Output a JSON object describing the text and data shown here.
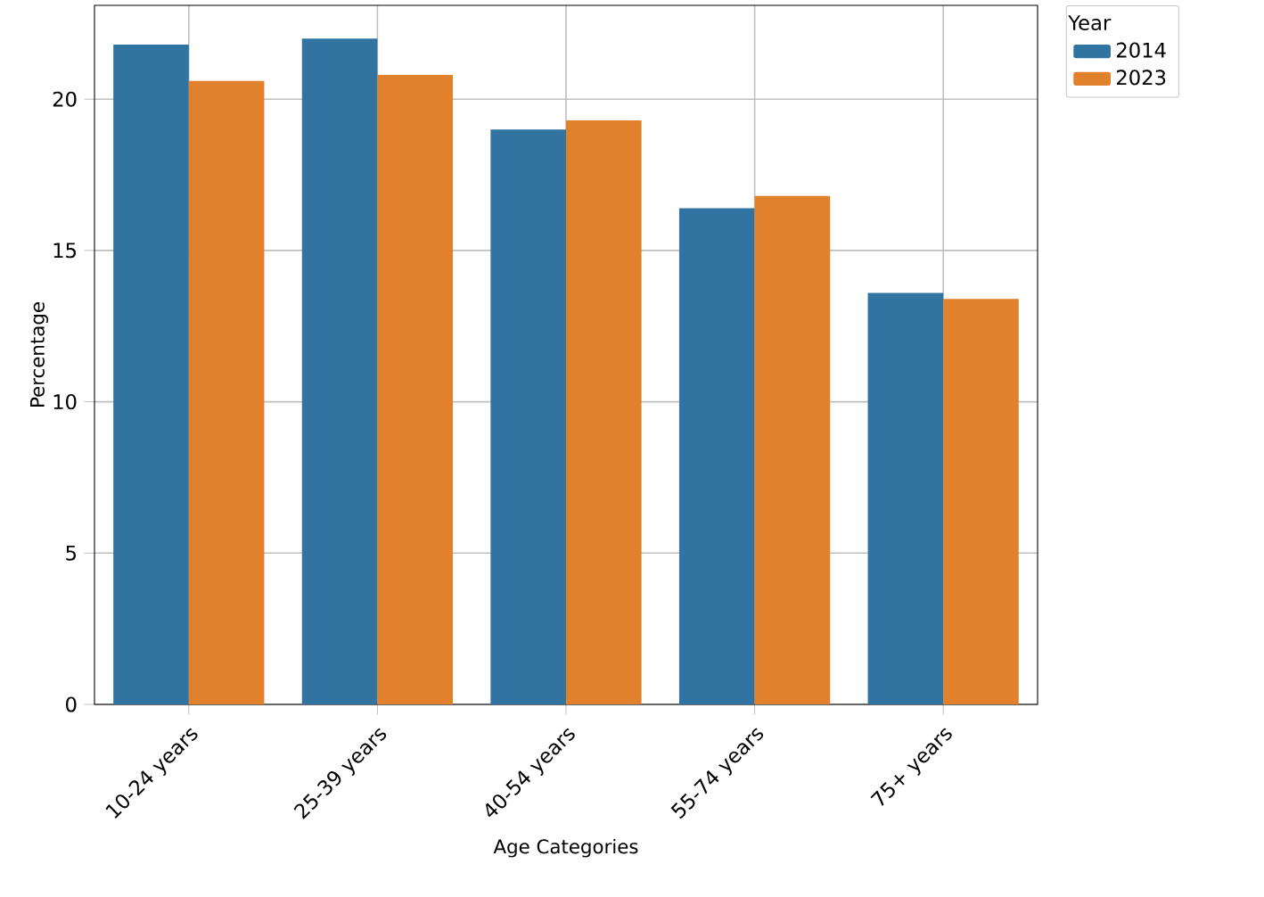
{
  "chart_data": {
    "type": "bar",
    "xlabel": "Age Categories",
    "ylabel": "Percentage",
    "legend_title": "Year",
    "categories": [
      "10-24 years",
      "25-39 years",
      "40-54 years",
      "55-74 years",
      "75+ years"
    ],
    "series": [
      {
        "name": "2014",
        "color": "#3274a1",
        "values": [
          21.8,
          22.0,
          19.0,
          16.4,
          13.6
        ]
      },
      {
        "name": "2023",
        "color": "#e1812c",
        "values": [
          20.6,
          20.8,
          19.3,
          16.8,
          13.4
        ]
      }
    ],
    "ylim": [
      0,
      23.1
    ],
    "yticks": [
      0,
      5,
      10,
      15,
      20
    ],
    "grid": true,
    "legend": "top right"
  }
}
